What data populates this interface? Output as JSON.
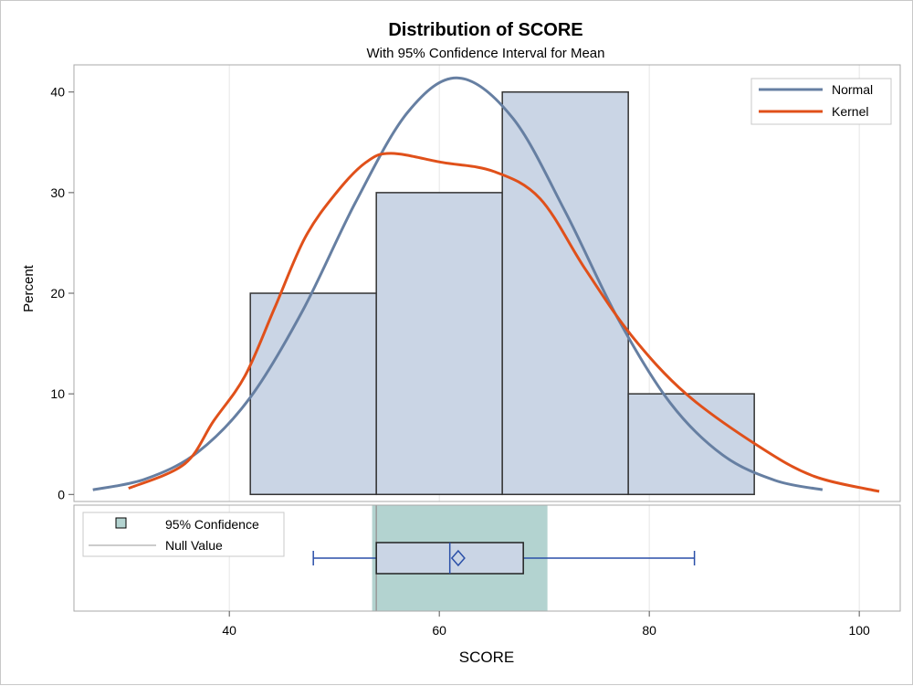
{
  "chart_data": {
    "type": "histogram",
    "title": "Distribution of SCORE",
    "subtitle": "With 95% Confidence Interval for Mean",
    "xlabel": "SCORE",
    "ylabel": "Percent",
    "xlim": [
      25.2,
      103.9
    ],
    "ylim": [
      -0.7,
      42.7
    ],
    "xticks": [
      40,
      60,
      80,
      100
    ],
    "yticks": [
      0,
      10,
      20,
      30,
      40
    ],
    "grid": "vertical",
    "bins": [
      {
        "from": 42,
        "to": 54,
        "value": 20
      },
      {
        "from": 54,
        "to": 66,
        "value": 30
      },
      {
        "from": 66,
        "to": 78,
        "value": 40
      },
      {
        "from": 78,
        "to": 90,
        "value": 10
      }
    ],
    "series": [
      {
        "name": "Normal",
        "color": "#667fa2",
        "points": [
          [
            27,
            0.46
          ],
          [
            32,
            1.53
          ],
          [
            37,
            4.21
          ],
          [
            42,
            9.65
          ],
          [
            47,
            18.3
          ],
          [
            52,
            29.0
          ],
          [
            57,
            38.0
          ],
          [
            61.8,
            41.4
          ],
          [
            67,
            37.4
          ],
          [
            72,
            28.1
          ],
          [
            77,
            17.5
          ],
          [
            82,
            9.09
          ],
          [
            87,
            3.91
          ],
          [
            92,
            1.39
          ],
          [
            96.5,
            0.47
          ]
        ]
      },
      {
        "name": "Kernel",
        "color": "#e0501a",
        "points": [
          [
            30.4,
            0.6
          ],
          [
            35.7,
            3
          ],
          [
            38.5,
            7.3
          ],
          [
            41.5,
            11.8
          ],
          [
            44.3,
            18.5
          ],
          [
            47.2,
            25.5
          ],
          [
            50.2,
            30
          ],
          [
            53,
            33
          ],
          [
            55.4,
            33.9
          ],
          [
            60.3,
            33
          ],
          [
            65.2,
            32.1
          ],
          [
            69.6,
            29.4
          ],
          [
            73.9,
            22.4
          ],
          [
            78.3,
            15.8
          ],
          [
            83.5,
            10
          ],
          [
            90.4,
            4.8
          ],
          [
            95.7,
            1.8
          ],
          [
            101.9,
            0.3
          ]
        ]
      }
    ],
    "legend": {
      "placement": "top-right",
      "entries": [
        "Normal",
        "Kernel"
      ]
    },
    "boxplot": {
      "whisker_low": 48,
      "q1": 54,
      "median": 61,
      "mean": 61.8,
      "q3": 68,
      "whisker_high": 84.3,
      "ci_low": 53.6,
      "ci_high": 70.3,
      "null_value": 54,
      "color": "#2a4fa8",
      "fill": "#cad5e5",
      "ci_color": "#b3d3d0",
      "legend": {
        "placement": "top-left",
        "entries": [
          "95% Confidence",
          "Null Value"
        ]
      }
    },
    "bar_fill": "#cad5e5"
  }
}
